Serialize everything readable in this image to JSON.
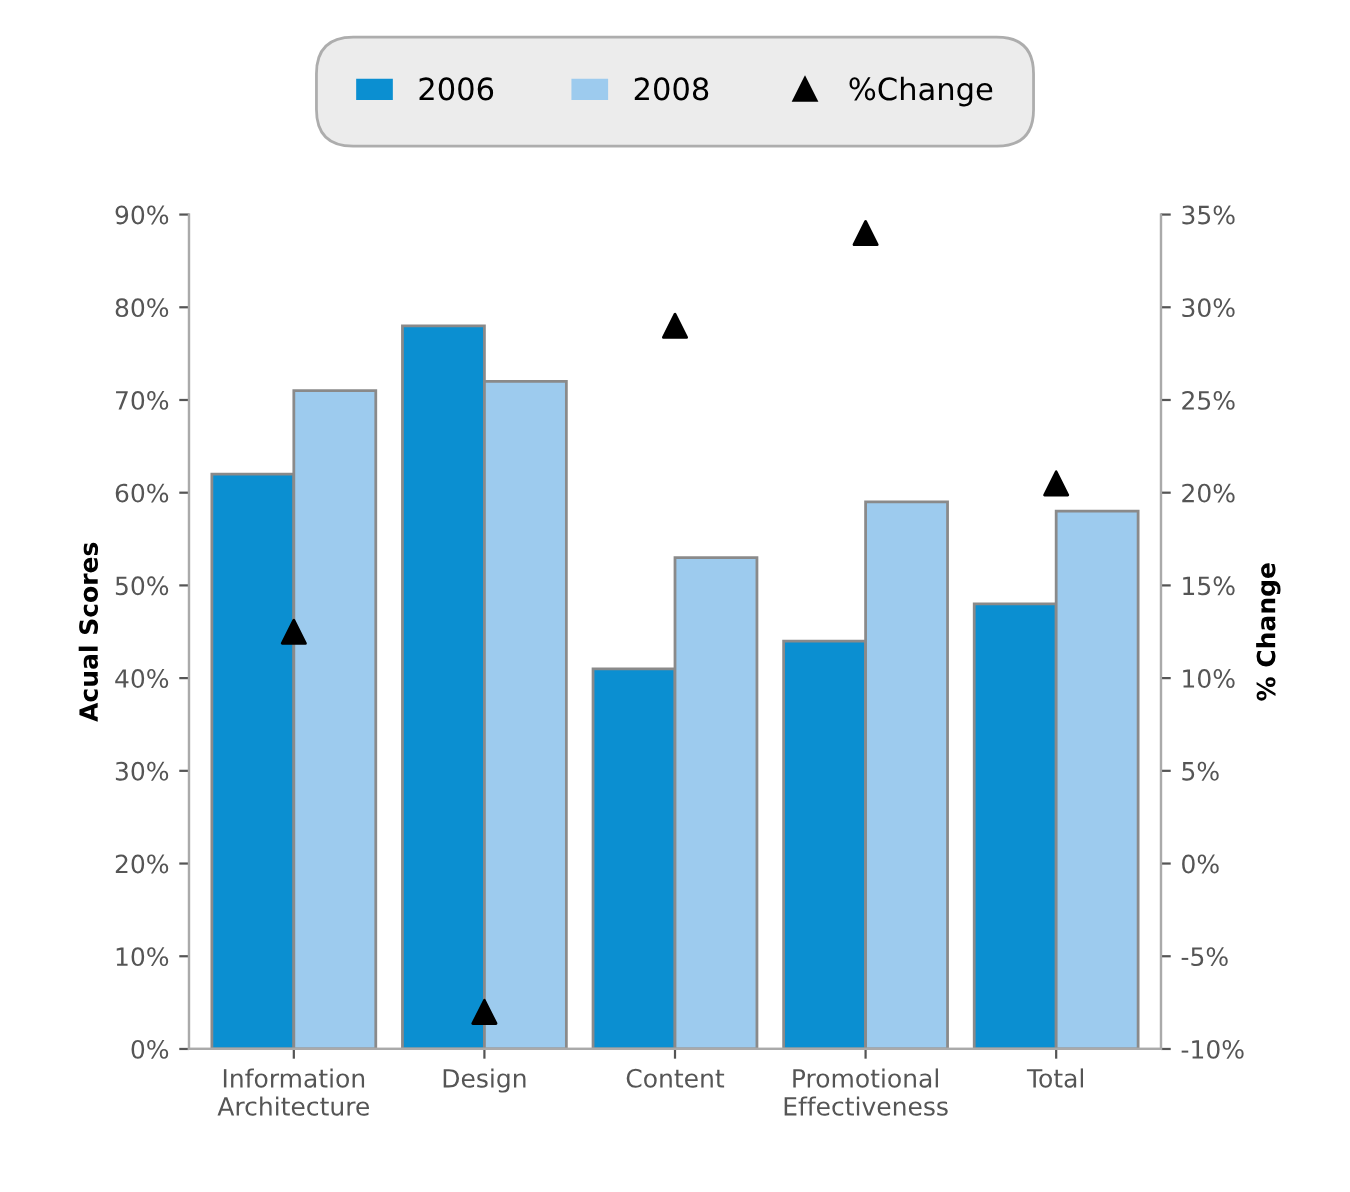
{
  "chart_data": {
    "type": "bar",
    "ylabel": "Acual Scores",
    "y2label": "% Change",
    "categories": [
      "Information\nArchitecture",
      "Design",
      "Content",
      "Promotional\nEffectiveness",
      "Total"
    ],
    "series": [
      {
        "name": "2006",
        "color": "#0b8fd1",
        "values": [
          62,
          78,
          41,
          44,
          48
        ]
      },
      {
        "name": "2008",
        "color": "#9dcbee",
        "values": [
          71,
          72,
          53,
          59,
          58
        ]
      },
      {
        "name": "%Change",
        "type": "scatter",
        "axis": "y2",
        "color": "#000000",
        "marker": "triangle",
        "values": [
          12.5,
          -8,
          29,
          34,
          20.5
        ]
      }
    ],
    "ylim": [
      0,
      90
    ],
    "yticks": [
      {
        "value": 0,
        "label": "0%"
      },
      {
        "value": 10,
        "label": "10%"
      },
      {
        "value": 20,
        "label": "20%"
      },
      {
        "value": 30,
        "label": "30%"
      },
      {
        "value": 40,
        "label": "40%"
      },
      {
        "value": 50,
        "label": "50%"
      },
      {
        "value": 60,
        "label": "60%"
      },
      {
        "value": 70,
        "label": "70%"
      },
      {
        "value": 80,
        "label": "80%"
      },
      {
        "value": 90,
        "label": "90%"
      }
    ],
    "y2lim": [
      -10,
      35
    ],
    "y2ticks": [
      {
        "value": -10,
        "label": "-10%"
      },
      {
        "value": -5,
        "label": "-5%"
      },
      {
        "value": 0,
        "label": "0%"
      },
      {
        "value": 5,
        "label": "5%"
      },
      {
        "value": 10,
        "label": "10%"
      },
      {
        "value": 15,
        "label": "15%"
      },
      {
        "value": 20,
        "label": "20%"
      },
      {
        "value": 25,
        "label": "25%"
      },
      {
        "value": 30,
        "label": "30%"
      },
      {
        "value": 35,
        "label": "35%"
      }
    ],
    "grid": false,
    "legend": "top"
  }
}
